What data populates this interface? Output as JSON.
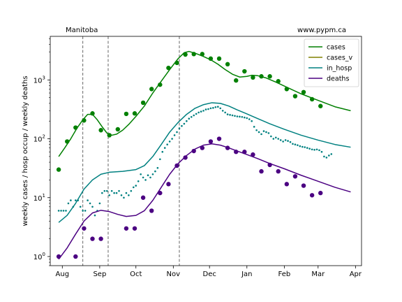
{
  "chart_data": {
    "type": "line",
    "title_left": "Manitoba",
    "title_right": "www.pypm.ca",
    "ylabel": "weekly cases / hosp occup / weekly deaths",
    "xlabel": "",
    "yscale": "log",
    "ylim": [
      0.7,
      5500
    ],
    "xlim": [
      "2020-07-22",
      "2021-04-06"
    ],
    "x_ticks": [
      {
        "label": "Aug",
        "date": "2020-08-01"
      },
      {
        "label": "Sep",
        "date": "2020-09-01"
      },
      {
        "label": "Oct",
        "date": "2020-10-01"
      },
      {
        "label": "Nov",
        "date": "2020-11-01"
      },
      {
        "label": "Dec",
        "date": "2020-12-01"
      },
      {
        "label": "Jan",
        "date": "2021-01-01"
      },
      {
        "label": "Feb",
        "date": "2021-02-01"
      },
      {
        "label": "Mar",
        "date": "2021-03-01"
      },
      {
        "label": "Apr",
        "date": "2021-04-01"
      }
    ],
    "y_ticks": [
      {
        "label": "10",
        "sup": "0",
        "value": 1
      },
      {
        "label": "10",
        "sup": "1",
        "value": 10
      },
      {
        "label": "10",
        "sup": "2",
        "value": 100
      },
      {
        "label": "10",
        "sup": "3",
        "value": 1000
      }
    ],
    "vlines": [
      "2020-08-18",
      "2020-09-08",
      "2020-11-06"
    ],
    "legend": {
      "position": "top-right",
      "entries": [
        {
          "name": "cases",
          "color": "#007f00"
        },
        {
          "name": "cases_v",
          "color": "#808000"
        },
        {
          "name": "in_hosp",
          "color": "#008080"
        },
        {
          "name": "deaths",
          "color": "#4b0082"
        }
      ]
    },
    "model_curves": [
      {
        "name": "cases",
        "color": "#007f00",
        "points": [
          [
            "2020-07-29",
            50
          ],
          [
            "2020-08-03",
            70
          ],
          [
            "2020-08-08",
            100
          ],
          [
            "2020-08-13",
            150
          ],
          [
            "2020-08-18",
            210
          ],
          [
            "2020-08-22",
            260
          ],
          [
            "2020-08-26",
            260
          ],
          [
            "2020-08-30",
            210
          ],
          [
            "2020-09-03",
            160
          ],
          [
            "2020-09-07",
            125
          ],
          [
            "2020-09-11",
            115
          ],
          [
            "2020-09-15",
            120
          ],
          [
            "2020-09-20",
            140
          ],
          [
            "2020-09-25",
            175
          ],
          [
            "2020-10-01",
            240
          ],
          [
            "2020-10-08",
            360
          ],
          [
            "2020-10-15",
            600
          ],
          [
            "2020-10-22",
            950
          ],
          [
            "2020-10-29",
            1500
          ],
          [
            "2020-11-05",
            2300
          ],
          [
            "2020-11-10",
            2900
          ],
          [
            "2020-11-14",
            3050
          ],
          [
            "2020-11-20",
            2800
          ],
          [
            "2020-11-26",
            2500
          ],
          [
            "2020-12-02",
            2200
          ],
          [
            "2020-12-08",
            1850
          ],
          [
            "2020-12-14",
            1500
          ],
          [
            "2020-12-20",
            1250
          ],
          [
            "2020-12-26",
            1120
          ],
          [
            "2021-01-01",
            1150
          ],
          [
            "2021-01-05",
            1200
          ],
          [
            "2021-01-10",
            1180
          ],
          [
            "2021-01-17",
            1080
          ],
          [
            "2021-01-25",
            920
          ],
          [
            "2021-02-05",
            720
          ],
          [
            "2021-02-15",
            580
          ],
          [
            "2021-03-01",
            450
          ],
          [
            "2021-03-15",
            350
          ],
          [
            "2021-03-28",
            300
          ]
        ]
      },
      {
        "name": "in_hosp",
        "color": "#008080",
        "points": [
          [
            "2020-07-29",
            3.8
          ],
          [
            "2020-08-05",
            5.0
          ],
          [
            "2020-08-12",
            8
          ],
          [
            "2020-08-19",
            14
          ],
          [
            "2020-08-26",
            20
          ],
          [
            "2020-09-02",
            25
          ],
          [
            "2020-09-09",
            27
          ],
          [
            "2020-09-20",
            28
          ],
          [
            "2020-10-01",
            30
          ],
          [
            "2020-10-08",
            35
          ],
          [
            "2020-10-15",
            50
          ],
          [
            "2020-10-22",
            80
          ],
          [
            "2020-10-29",
            130
          ],
          [
            "2020-11-05",
            190
          ],
          [
            "2020-11-12",
            260
          ],
          [
            "2020-11-19",
            330
          ],
          [
            "2020-11-26",
            380
          ],
          [
            "2020-12-03",
            410
          ],
          [
            "2020-12-10",
            400
          ],
          [
            "2020-12-17",
            360
          ],
          [
            "2020-12-24",
            310
          ],
          [
            "2020-12-31",
            270
          ],
          [
            "2021-01-10",
            220
          ],
          [
            "2021-01-20",
            180
          ],
          [
            "2021-02-01",
            145
          ],
          [
            "2021-02-15",
            115
          ],
          [
            "2021-03-01",
            95
          ],
          [
            "2021-03-15",
            80
          ],
          [
            "2021-03-28",
            72
          ]
        ]
      },
      {
        "name": "deaths",
        "color": "#4b0082",
        "points": [
          [
            "2020-07-29",
            0.9
          ],
          [
            "2020-08-05",
            1.4
          ],
          [
            "2020-08-12",
            2.4
          ],
          [
            "2020-08-19",
            4.0
          ],
          [
            "2020-08-26",
            5.5
          ],
          [
            "2020-09-02",
            6.1
          ],
          [
            "2020-09-09",
            5.8
          ],
          [
            "2020-09-16",
            5.2
          ],
          [
            "2020-09-23",
            4.8
          ],
          [
            "2020-10-01",
            5.0
          ],
          [
            "2020-10-08",
            6.0
          ],
          [
            "2020-10-15",
            9
          ],
          [
            "2020-10-22",
            15
          ],
          [
            "2020-10-29",
            25
          ],
          [
            "2020-11-05",
            38
          ],
          [
            "2020-11-12",
            52
          ],
          [
            "2020-11-19",
            67
          ],
          [
            "2020-11-26",
            78
          ],
          [
            "2020-12-03",
            82
          ],
          [
            "2020-12-10",
            78
          ],
          [
            "2020-12-17",
            70
          ],
          [
            "2020-12-24",
            62
          ],
          [
            "2020-12-31",
            55
          ],
          [
            "2021-01-10",
            46
          ],
          [
            "2021-01-20",
            38
          ],
          [
            "2021-02-01",
            31
          ],
          [
            "2021-02-15",
            24
          ],
          [
            "2021-03-01",
            19
          ],
          [
            "2021-03-15",
            15
          ],
          [
            "2021-03-28",
            12.5
          ]
        ]
      }
    ],
    "observed_cases": [
      [
        "2020-07-29",
        30
      ],
      [
        "2020-08-05",
        90
      ],
      [
        "2020-08-12",
        155
      ],
      [
        "2020-08-19",
        205
      ],
      [
        "2020-08-26",
        270
      ],
      [
        "2020-09-02",
        140
      ],
      [
        "2020-09-09",
        115
      ],
      [
        "2020-09-16",
        145
      ],
      [
        "2020-09-23",
        265
      ],
      [
        "2020-09-30",
        270
      ],
      [
        "2020-10-07",
        410
      ],
      [
        "2020-10-14",
        700
      ],
      [
        "2020-10-21",
        830
      ],
      [
        "2020-10-28",
        1600
      ],
      [
        "2020-11-04",
        1950
      ],
      [
        "2020-11-11",
        2700
      ],
      [
        "2020-11-18",
        2750
      ],
      [
        "2020-11-25",
        2750
      ],
      [
        "2020-12-02",
        2300
      ],
      [
        "2020-12-09",
        2300
      ],
      [
        "2020-12-16",
        1850
      ],
      [
        "2020-12-23",
        980
      ],
      [
        "2020-12-30",
        1400
      ],
      [
        "2021-01-06",
        1100
      ],
      [
        "2021-01-13",
        1150
      ],
      [
        "2021-01-20",
        1150
      ],
      [
        "2021-01-27",
        950
      ],
      [
        "2021-02-03",
        700
      ],
      [
        "2021-02-10",
        530
      ],
      [
        "2021-02-17",
        620
      ],
      [
        "2021-02-24",
        470
      ],
      [
        "2021-03-03",
        360
      ]
    ],
    "observed_deaths": [
      [
        "2020-07-29",
        1
      ],
      [
        "2020-08-12",
        1
      ],
      [
        "2020-08-19",
        3
      ],
      [
        "2020-08-26",
        2
      ],
      [
        "2020-09-02",
        2
      ],
      [
        "2020-09-23",
        3
      ],
      [
        "2020-09-30",
        3
      ],
      [
        "2020-10-07",
        10
      ],
      [
        "2020-10-14",
        6
      ],
      [
        "2020-10-21",
        12
      ],
      [
        "2020-10-28",
        17
      ],
      [
        "2020-11-04",
        35
      ],
      [
        "2020-11-11",
        48
      ],
      [
        "2020-11-18",
        62
      ],
      [
        "2020-11-25",
        70
      ],
      [
        "2020-12-02",
        90
      ],
      [
        "2020-12-09",
        100
      ],
      [
        "2020-12-16",
        70
      ],
      [
        "2020-12-23",
        60
      ],
      [
        "2020-12-30",
        60
      ],
      [
        "2021-01-06",
        54
      ],
      [
        "2021-01-13",
        28
      ],
      [
        "2021-01-20",
        36
      ],
      [
        "2021-01-27",
        28
      ],
      [
        "2021-02-03",
        17
      ],
      [
        "2021-02-10",
        23
      ],
      [
        "2021-02-17",
        16
      ],
      [
        "2021-02-24",
        11
      ],
      [
        "2021-03-03",
        12
      ]
    ],
    "observed_in_hosp": [
      [
        "2020-07-29",
        6
      ],
      [
        "2020-07-31",
        6
      ],
      [
        "2020-08-02",
        6
      ],
      [
        "2020-08-04",
        6
      ],
      [
        "2020-08-06",
        8
      ],
      [
        "2020-08-08",
        9
      ],
      [
        "2020-08-10",
        7
      ],
      [
        "2020-08-12",
        9
      ],
      [
        "2020-08-14",
        9
      ],
      [
        "2020-08-16",
        7
      ],
      [
        "2020-08-18",
        6
      ],
      [
        "2020-08-20",
        6
      ],
      [
        "2020-08-22",
        9
      ],
      [
        "2020-08-24",
        8
      ],
      [
        "2020-08-26",
        7
      ],
      [
        "2020-08-28",
        5
      ],
      [
        "2020-08-30",
        6
      ],
      [
        "2020-09-01",
        8
      ],
      [
        "2020-09-03",
        12
      ],
      [
        "2020-09-05",
        13
      ],
      [
        "2020-09-07",
        13
      ],
      [
        "2020-09-09",
        11
      ],
      [
        "2020-09-11",
        13
      ],
      [
        "2020-09-13",
        12
      ],
      [
        "2020-09-15",
        12
      ],
      [
        "2020-09-17",
        13
      ],
      [
        "2020-09-19",
        11
      ],
      [
        "2020-09-21",
        10
      ],
      [
        "2020-09-23",
        12
      ],
      [
        "2020-09-25",
        11
      ],
      [
        "2020-09-27",
        13
      ],
      [
        "2020-09-29",
        15
      ],
      [
        "2020-10-01",
        16
      ],
      [
        "2020-10-03",
        19
      ],
      [
        "2020-10-05",
        25
      ],
      [
        "2020-10-07",
        22
      ],
      [
        "2020-10-09",
        20
      ],
      [
        "2020-10-11",
        24
      ],
      [
        "2020-10-13",
        22
      ],
      [
        "2020-10-15",
        25
      ],
      [
        "2020-10-17",
        28
      ],
      [
        "2020-10-19",
        32
      ],
      [
        "2020-10-21",
        45
      ],
      [
        "2020-10-23",
        60
      ],
      [
        "2020-10-25",
        70
      ],
      [
        "2020-10-27",
        80
      ],
      [
        "2020-10-29",
        90
      ],
      [
        "2020-10-31",
        100
      ],
      [
        "2020-11-02",
        115
      ],
      [
        "2020-11-04",
        130
      ],
      [
        "2020-11-06",
        150
      ],
      [
        "2020-11-08",
        165
      ],
      [
        "2020-11-10",
        180
      ],
      [
        "2020-11-12",
        200
      ],
      [
        "2020-11-14",
        220
      ],
      [
        "2020-11-16",
        235
      ],
      [
        "2020-11-18",
        250
      ],
      [
        "2020-11-20",
        265
      ],
      [
        "2020-11-22",
        280
      ],
      [
        "2020-11-24",
        290
      ],
      [
        "2020-11-26",
        300
      ],
      [
        "2020-11-28",
        315
      ],
      [
        "2020-11-30",
        320
      ],
      [
        "2020-12-02",
        330
      ],
      [
        "2020-12-04",
        335
      ],
      [
        "2020-12-06",
        345
      ],
      [
        "2020-12-08",
        350
      ],
      [
        "2020-12-10",
        330
      ],
      [
        "2020-12-12",
        300
      ],
      [
        "2020-12-14",
        280
      ],
      [
        "2020-12-16",
        260
      ],
      [
        "2020-12-18",
        255
      ],
      [
        "2020-12-20",
        250
      ],
      [
        "2020-12-22",
        245
      ],
      [
        "2020-12-24",
        240
      ],
      [
        "2020-12-26",
        238
      ],
      [
        "2020-12-28",
        235
      ],
      [
        "2020-12-30",
        230
      ],
      [
        "2021-01-01",
        225
      ],
      [
        "2021-01-03",
        215
      ],
      [
        "2021-01-05",
        200
      ],
      [
        "2021-01-07",
        160
      ],
      [
        "2021-01-09",
        140
      ],
      [
        "2021-01-11",
        130
      ],
      [
        "2021-01-13",
        120
      ],
      [
        "2021-01-15",
        135
      ],
      [
        "2021-01-17",
        130
      ],
      [
        "2021-01-19",
        125
      ],
      [
        "2021-01-21",
        110
      ],
      [
        "2021-01-23",
        100
      ],
      [
        "2021-01-25",
        105
      ],
      [
        "2021-01-27",
        100
      ],
      [
        "2021-01-29",
        95
      ],
      [
        "2021-01-31",
        90
      ],
      [
        "2021-02-02",
        95
      ],
      [
        "2021-02-04",
        92
      ],
      [
        "2021-02-06",
        88
      ],
      [
        "2021-02-08",
        82
      ],
      [
        "2021-02-10",
        80
      ],
      [
        "2021-02-12",
        78
      ],
      [
        "2021-02-14",
        75
      ],
      [
        "2021-02-16",
        73
      ],
      [
        "2021-02-18",
        72
      ],
      [
        "2021-02-20",
        70
      ],
      [
        "2021-02-22",
        68
      ],
      [
        "2021-02-24",
        66
      ],
      [
        "2021-02-26",
        65
      ],
      [
        "2021-02-28",
        66
      ],
      [
        "2021-03-02",
        64
      ],
      [
        "2021-03-04",
        60
      ],
      [
        "2021-03-06",
        50
      ],
      [
        "2021-03-08",
        48
      ],
      [
        "2021-03-10",
        52
      ],
      [
        "2021-03-12",
        55
      ]
    ]
  }
}
